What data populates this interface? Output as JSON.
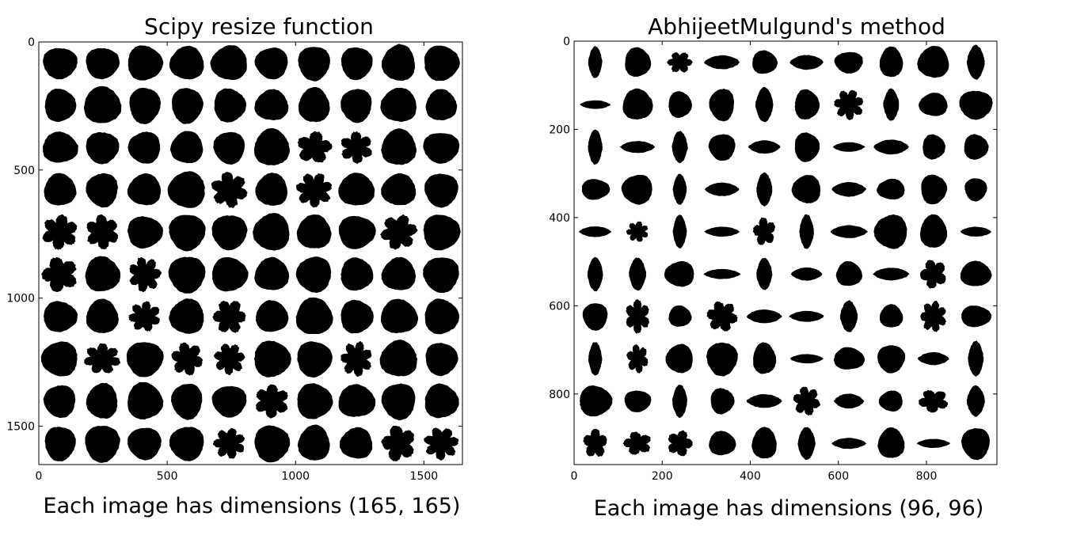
{
  "colors": {
    "leaf": "#000000",
    "axes": "#000000",
    "background": "#ffffff"
  },
  "chart_data": [
    {
      "type": "image-grid",
      "title": "Scipy resize function",
      "caption": "Each image has dimensions (165, 165)",
      "xlim": [
        0,
        1650
      ],
      "ylim": [
        1650,
        0
      ],
      "grid": false,
      "xticks": [
        0,
        500,
        1000,
        1500
      ],
      "yticks": [
        0,
        500,
        1000,
        1500
      ],
      "tiles": {
        "rows": 10,
        "cols": 10,
        "tile_size": 165
      }
    },
    {
      "type": "image-grid",
      "title": "AbhijeetMulgund's method",
      "caption": "Each image has dimensions (96, 96)",
      "xlim": [
        0,
        960
      ],
      "ylim": [
        960,
        0
      ],
      "grid": false,
      "xticks": [
        0,
        200,
        400,
        600,
        800
      ],
      "yticks": [
        0,
        200,
        400,
        600,
        800
      ],
      "tiles": {
        "rows": 10,
        "cols": 10,
        "tile_size": 96
      }
    }
  ]
}
